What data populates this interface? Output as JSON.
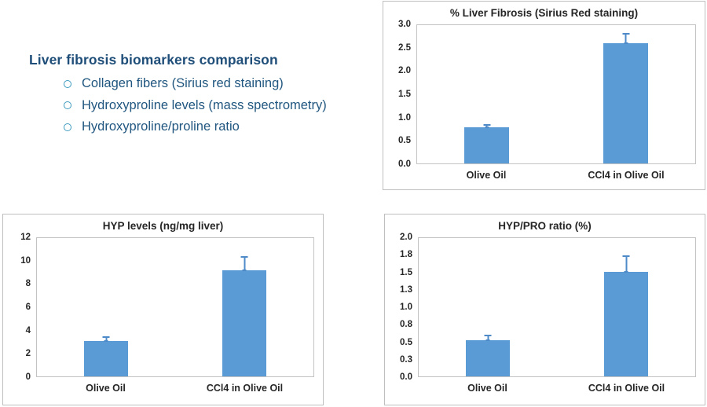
{
  "slide": {
    "heading": "Liver fibrosis biomarkers comparison",
    "bullets": [
      "Collagen fibers (Sirius red staining)",
      "Hydroxyproline levels (mass spectrometry)",
      "Hydroxyproline/proline ratio"
    ]
  },
  "colors": {
    "bar": "#5b9bd5",
    "error": "#4e8ac8",
    "heading": "#1f4e79",
    "bullet_text": "#20567f",
    "ring": "#3d9bbf",
    "panel_border": "#bfbfbf",
    "plot_border": "#c3c3c3",
    "label": "#262626"
  },
  "chart_data": [
    {
      "type": "bar",
      "title": "% Liver Fibrosis (Sirius Red staining)",
      "categories": [
        "Olive Oil",
        "CCl4 in Olive Oil"
      ],
      "values": [
        0.78,
        2.6
      ],
      "error_plus": [
        0.07,
        0.23
      ],
      "ylim": [
        0,
        3.0
      ],
      "yticks": [
        0,
        0.5,
        1.0,
        1.5,
        2.0,
        2.5,
        3.0
      ],
      "ytick_labels": [
        "0.0",
        "0.5",
        "1.0",
        "1.5",
        "2.0",
        "2.5",
        "3.0"
      ],
      "xlabel": "",
      "ylabel": "",
      "grid": false,
      "legend": "none",
      "bar_color": "#5b9bd5",
      "error_bars": "plus-direction with caps"
    },
    {
      "type": "bar",
      "title": "HYP levels (ng/mg liver)",
      "categories": [
        "Olive Oil",
        "CCl4 in Olive Oil"
      ],
      "values": [
        3.1,
        9.2
      ],
      "error_plus": [
        0.4,
        1.2
      ],
      "ylim": [
        0,
        12
      ],
      "yticks": [
        0,
        2,
        4,
        6,
        8,
        10,
        12
      ],
      "ytick_labels": [
        "0",
        "2",
        "4",
        "6",
        "8",
        "10",
        "12"
      ],
      "xlabel": "",
      "ylabel": "",
      "grid": false,
      "legend": "none",
      "bar_color": "#5b9bd5",
      "error_bars": "plus-direction with caps"
    },
    {
      "type": "bar",
      "title": "HYP/PRO ratio (%)",
      "categories": [
        "Olive Oil",
        "CCl4 in Olive Oil"
      ],
      "values": [
        0.52,
        1.51
      ],
      "error_plus": [
        0.08,
        0.24
      ],
      "ylim": [
        0,
        2.0
      ],
      "yticks": [
        0,
        0.25,
        0.5,
        0.75,
        1.0,
        1.25,
        1.5,
        1.75,
        2.0
      ],
      "ytick_labels": [
        "0.0",
        "0.3",
        "0.5",
        "0.8",
        "1.0",
        "1.3",
        "1.5",
        "1.8",
        "2.0"
      ],
      "xlabel": "",
      "ylabel": "",
      "grid": false,
      "legend": "none",
      "bar_color": "#5b9bd5",
      "error_bars": "plus-direction with caps"
    }
  ]
}
